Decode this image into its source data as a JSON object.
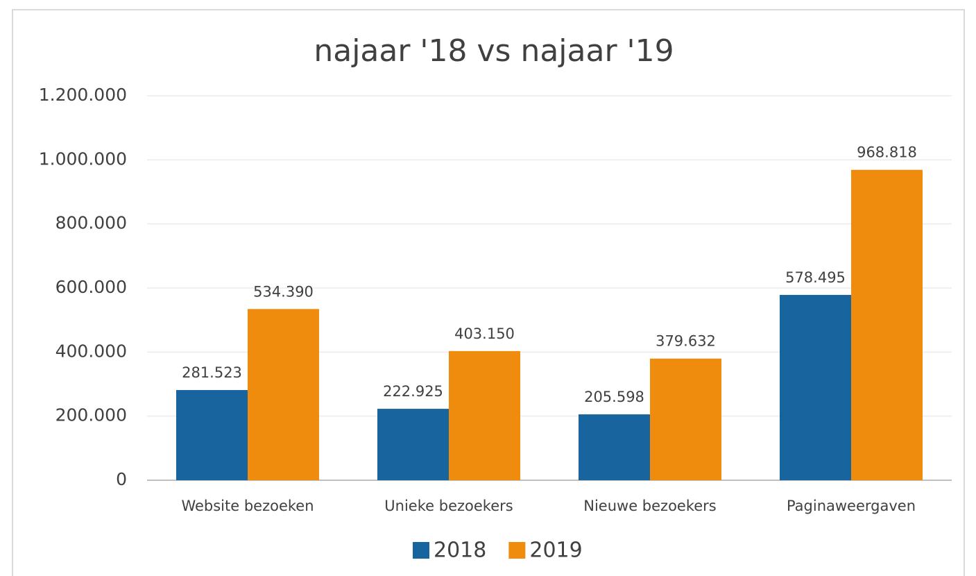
{
  "chart_data": {
    "type": "bar",
    "title": "najaar '18 vs najaar '19",
    "categories": [
      "Website bezoeken",
      "Unieke bezoekers",
      "Nieuwe bezoekers",
      "Paginaweergaven"
    ],
    "series": [
      {
        "name": "2018",
        "color": "#17649f",
        "values": [
          281523,
          222925,
          205598,
          578495
        ],
        "value_labels": [
          "281.523",
          "222.925",
          "205.598",
          "578.495"
        ]
      },
      {
        "name": "2019",
        "color": "#f08c0d",
        "values": [
          534390,
          403150,
          379632,
          968818
        ],
        "value_labels": [
          "534.390",
          "403.150",
          "379.632",
          "968.818"
        ]
      }
    ],
    "ylim": [
      0,
      1200000
    ],
    "yticks": [
      0,
      {
        "value": 200000,
        "label": "200.000"
      },
      {
        "value": 400000,
        "label": "400.000"
      },
      {
        "value": 600000,
        "label": "600.000"
      },
      {
        "value": 800000,
        "label": "800.000"
      },
      {
        "value": 1000000,
        "label": "1.000.000"
      },
      {
        "value": 1200000,
        "label": "1.200.000"
      }
    ],
    "grid": true,
    "legend": "bottom"
  }
}
